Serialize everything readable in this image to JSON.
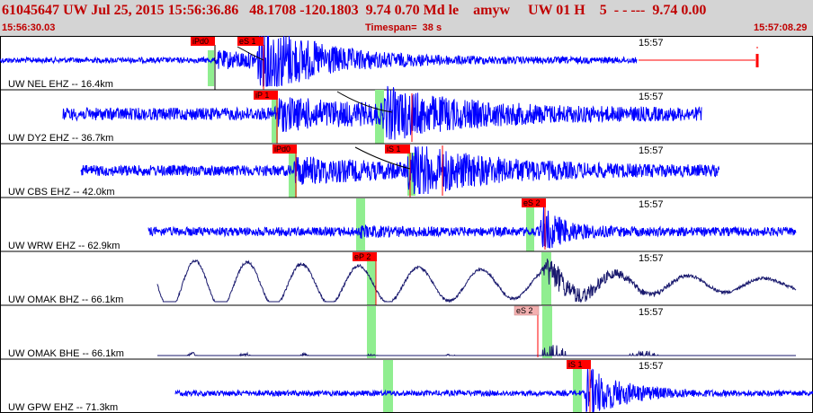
{
  "header": {
    "title": "61045647 UW Jul 25, 2015 15:56:36.86   48.1708 -120.1803  9.74 0.70 Md le    amyw     UW 01 H    5  - - ---  9.74 0.00",
    "start_time": "15:56:30.03",
    "timespan": "Timespan=  38 s",
    "end_time": "15:57:08.29"
  },
  "colors": {
    "header_bg": "#d4d4d4",
    "header_text": "#c00000",
    "trace_blue": "#0000ff",
    "trace_dark": "#1a1a6e",
    "pick_red": "#ff0000",
    "pick_pink": "#f4b0b0",
    "green_window": "#90ee90"
  },
  "traces": [
    {
      "label": "UW NEL EHZ -- 16.4km",
      "time": "15:57",
      "picks": [
        "iPd0",
        "eS 1"
      ],
      "color": "blue"
    },
    {
      "label": "UW DY2 EHZ -- 36.7km",
      "time": "15:57",
      "picks": [
        "iP 1"
      ],
      "color": "blue"
    },
    {
      "label": "UW CBS EHZ -- 42.0km",
      "time": "15:57",
      "picks": [
        "iPd0",
        "iS 1"
      ],
      "color": "blue"
    },
    {
      "label": "UW WRW EHZ -- 62.9km",
      "time": "15:57",
      "picks": [
        "eS 2"
      ],
      "color": "blue"
    },
    {
      "label": "UW OMAK BHZ -- 66.1km",
      "time": "15:57",
      "picks": [
        "eP 2"
      ],
      "color": "dark"
    },
    {
      "label": "UW OMAK BHE -- 66.1km",
      "time": "15:57",
      "picks": [
        "eS 2"
      ],
      "color": "dark"
    },
    {
      "label": "UW GPW EHZ -- 71.3km",
      "time": "15:57",
      "picks": [
        "iS 1"
      ],
      "color": "blue"
    }
  ]
}
